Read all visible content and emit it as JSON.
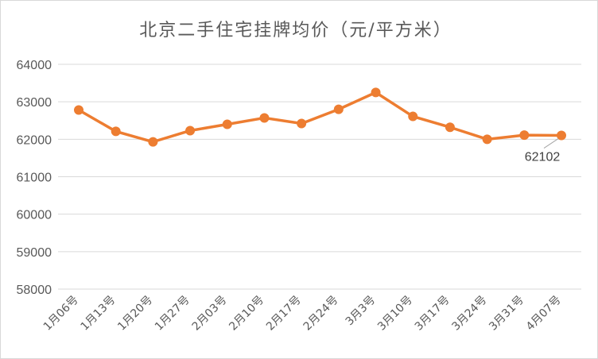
{
  "chart_data": {
    "type": "line",
    "title": "北京二手住宅挂牌均价（元/平方米）",
    "categories": [
      "1月06号",
      "1月13号",
      "1月20号",
      "1月27号",
      "2月03号",
      "2月10号",
      "2月17号",
      "2月24号",
      "3月3号",
      "3月10号",
      "3月17号",
      "3月24号",
      "3月31号",
      "4月07号"
    ],
    "series": [
      {
        "values": [
          62780,
          62210,
          61930,
          62230,
          62400,
          62570,
          62420,
          62800,
          63250,
          62610,
          62320,
          62000,
          62110,
          62102
        ]
      }
    ],
    "ylim": [
      58000,
      64000
    ],
    "yticks": [
      58000,
      59000,
      60000,
      61000,
      62000,
      63000,
      64000
    ],
    "xlabel": "",
    "ylabel": "",
    "data_labels": [
      {
        "index": 13,
        "text": "62102"
      }
    ],
    "grid": true,
    "legend": "none",
    "colors": {
      "series": "#ed7d31",
      "grid": "#d9d9d9",
      "text": "#595959"
    }
  }
}
